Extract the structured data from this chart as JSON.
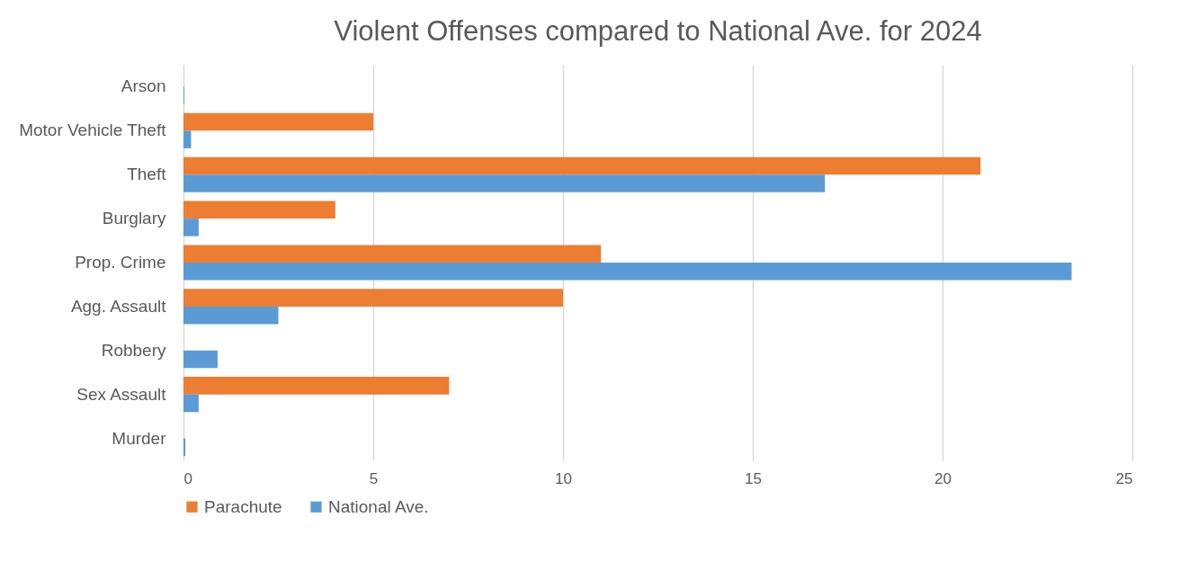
{
  "chart_data": {
    "type": "bar",
    "orientation": "horizontal",
    "title": "Violent Offenses compared to National Ave. for 2024",
    "categories": [
      "Arson",
      "Motor Vehicle Theft",
      "Theft",
      "Burglary",
      "Prop. Crime",
      "Agg. Assault",
      "Robbery",
      "Sex Assault",
      "Murder"
    ],
    "series": [
      {
        "name": "Parachute",
        "color": "#ed7d31",
        "values": [
          0,
          5,
          21,
          4,
          11,
          10,
          0,
          7,
          0
        ]
      },
      {
        "name": "National Ave.",
        "color": "#5b9bd5",
        "values": [
          0.02,
          0.2,
          16.9,
          0.4,
          23.4,
          2.5,
          0.9,
          0.4,
          0.05
        ]
      }
    ],
    "xlim": [
      0,
      25
    ],
    "xticks": [
      0,
      5,
      10,
      15,
      20,
      25
    ],
    "grid": "x",
    "legend": "bottom"
  }
}
